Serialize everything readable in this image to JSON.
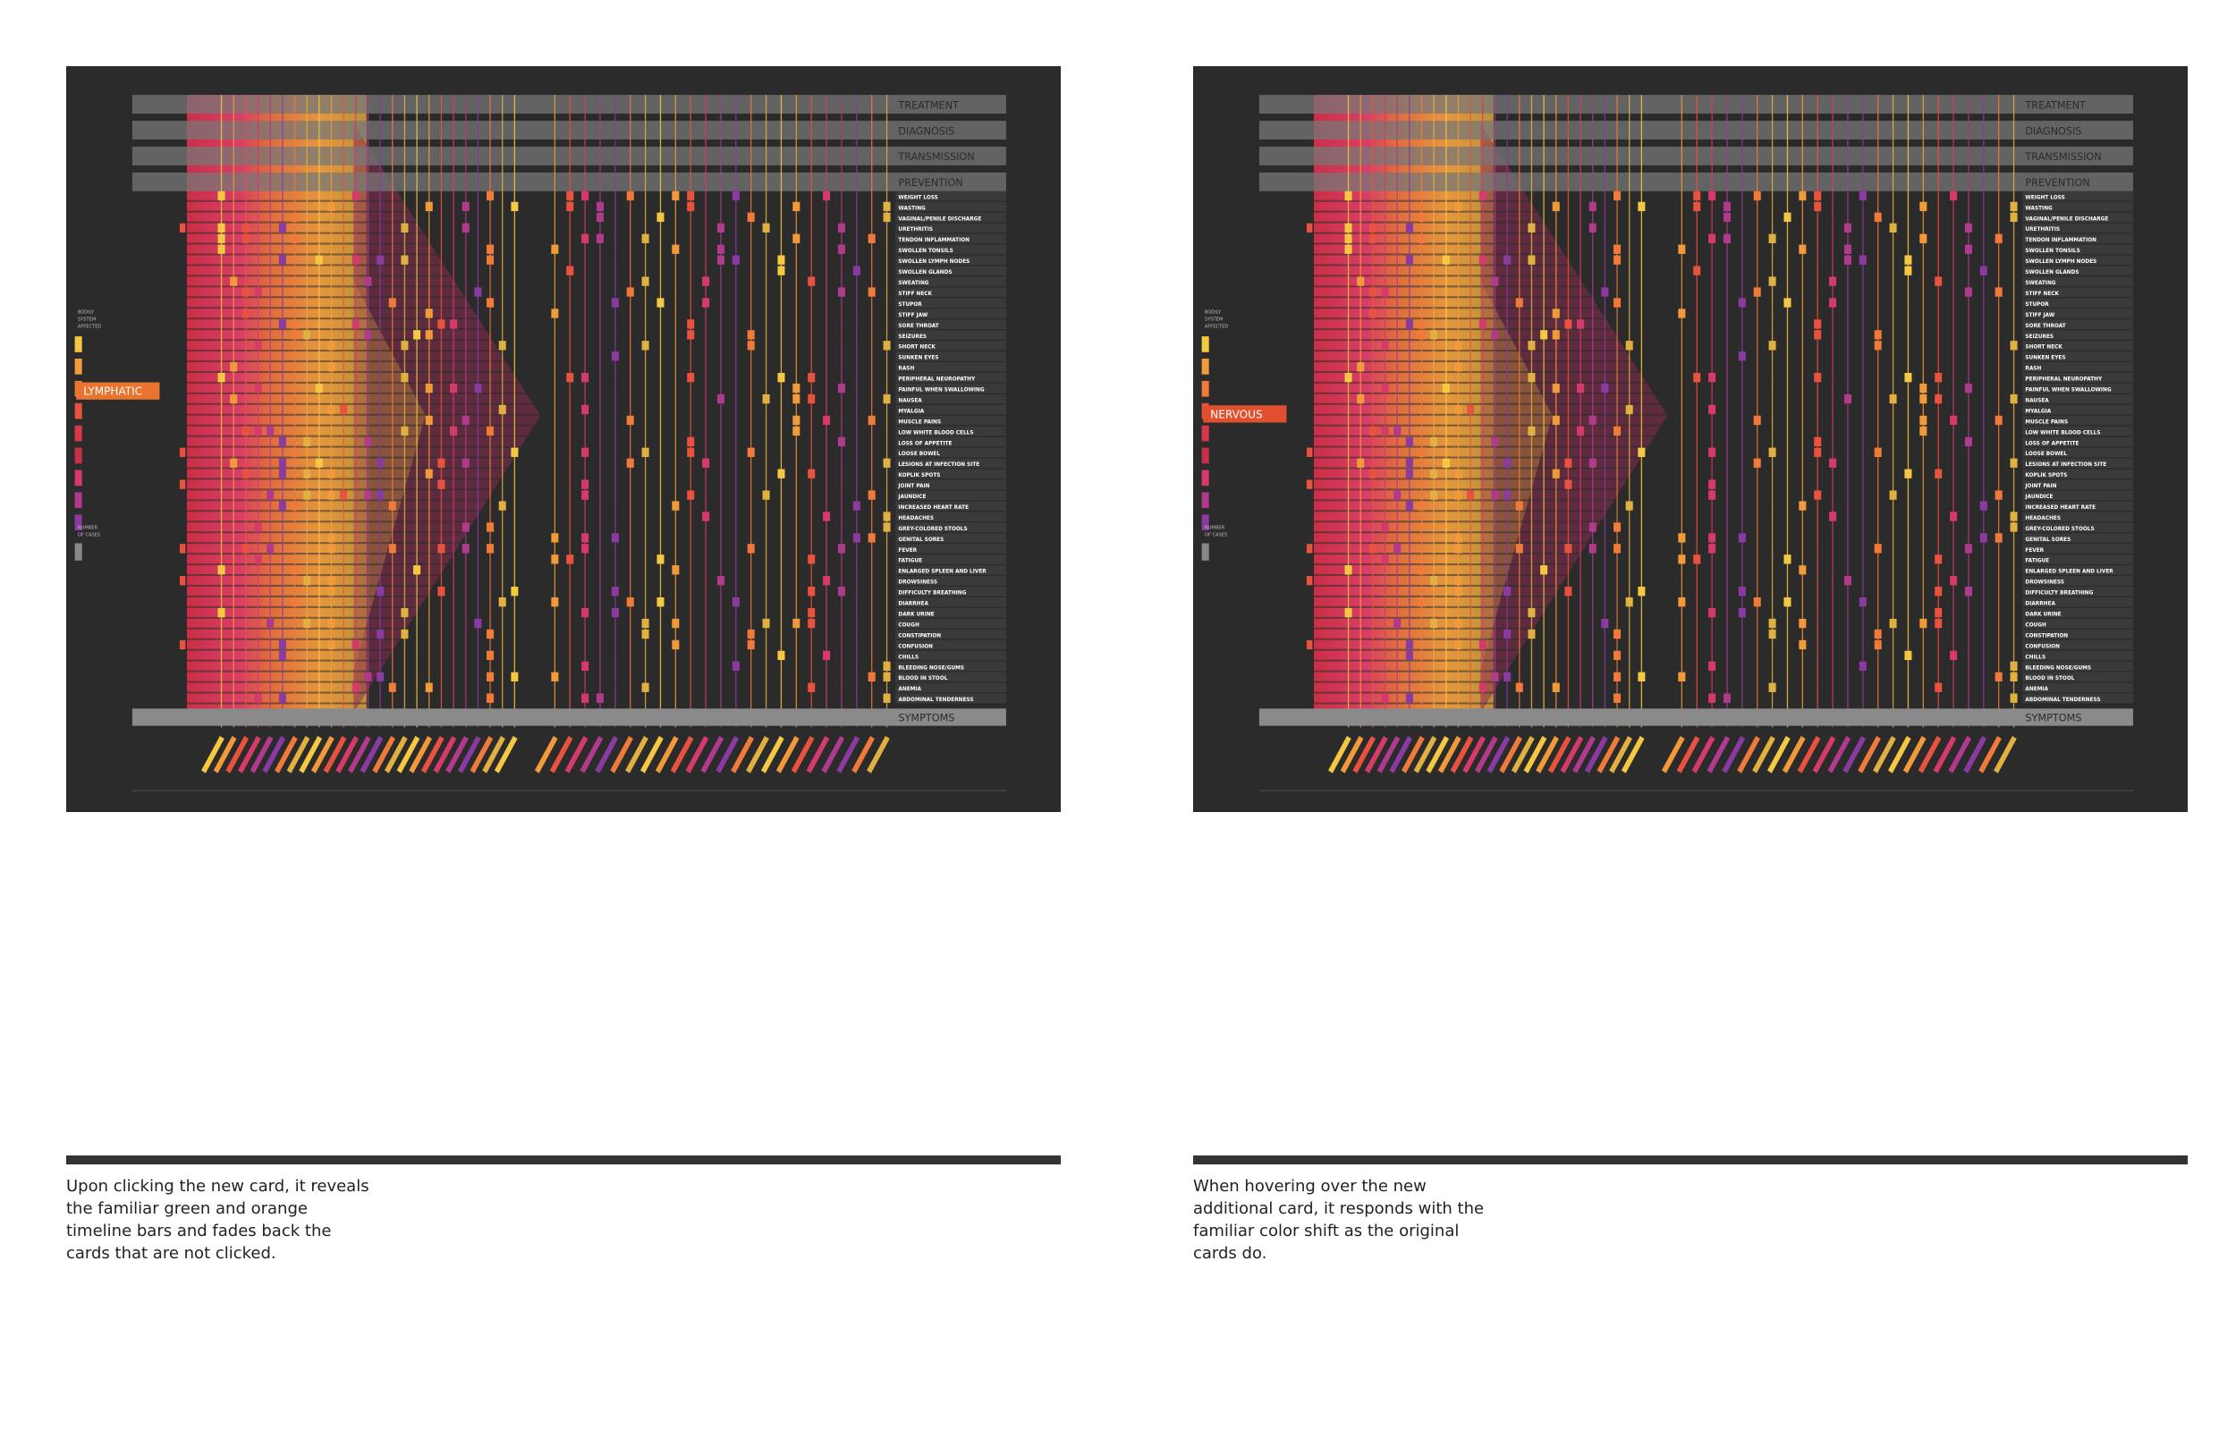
{
  "panels": [
    {
      "highlight": "LYMPHATIC",
      "caption": [
        "Upon clicking the new card, it reveals",
        "the familiar green and orange",
        "timeline bars and fades back the",
        "cards that are not clicked."
      ]
    },
    {
      "highlight": "NERVOUS",
      "caption": [
        "When hovering over the new",
        "additional card, it responds with the",
        "familiar color shift as the original",
        "cards do."
      ]
    }
  ],
  "visualization": {
    "categories": [
      "TREATMENT",
      "DIAGNOSIS",
      "TRANSMISSION",
      "PREVENTION"
    ],
    "axis_label": "SYMPTOMS",
    "symptoms": [
      "WEIGHT LOSS",
      "WASTING",
      "VAGINAL/PENILE DISCHARGE",
      "URETHRITIS",
      "TENDON INFLAMMATION",
      "SWOLLEN TONSILS",
      "SWOLLEN LYMPH NODES",
      "SWOLLEN GLANDS",
      "SWEATING",
      "STIFF NECK",
      "STUPOR",
      "STIFF JAW",
      "SORE THROAT",
      "SEIZURES",
      "SHORT NECK",
      "SUNKEN EYES",
      "RASH",
      "PERIPHERAL NEUROPATHY",
      "PAINFUL WHEN SWALLOWING",
      "NAUSEA",
      "MYALGIA",
      "MUSCLE PAINS",
      "LOW WHITE BLOOD CELLS",
      "LOSS OF APPETITE",
      "LOOSE BOWEL",
      "LESIONS AT INFECTION SITE",
      "KOPLIK SPOTS",
      "JOINT PAIN",
      "JAUNDICE",
      "INCREASED HEART RATE",
      "HEADACHES",
      "GREY-COLORED STOOLS",
      "GENITAL SORES",
      "FEVER",
      "FATIGUE",
      "ENLARGED SPLEEN AND LIVER",
      "DROWSINESS",
      "DIFFICULTY BREATHING",
      "DIARRHEA",
      "DARK URINE",
      "COUGH",
      "CONSTIPATION",
      "CONFUSION",
      "CHILLS",
      "BLEEDING NOSE/GUMS",
      "BLOOD IN STOOL",
      "ANEMIA",
      "ABDOMINAL TENDERNESS"
    ],
    "legend": {
      "systems_title": [
        "BODILY",
        "SYSTEM",
        "AFFECTED"
      ],
      "cases_title": [
        "NUMBER",
        "OF CASES"
      ]
    }
  }
}
